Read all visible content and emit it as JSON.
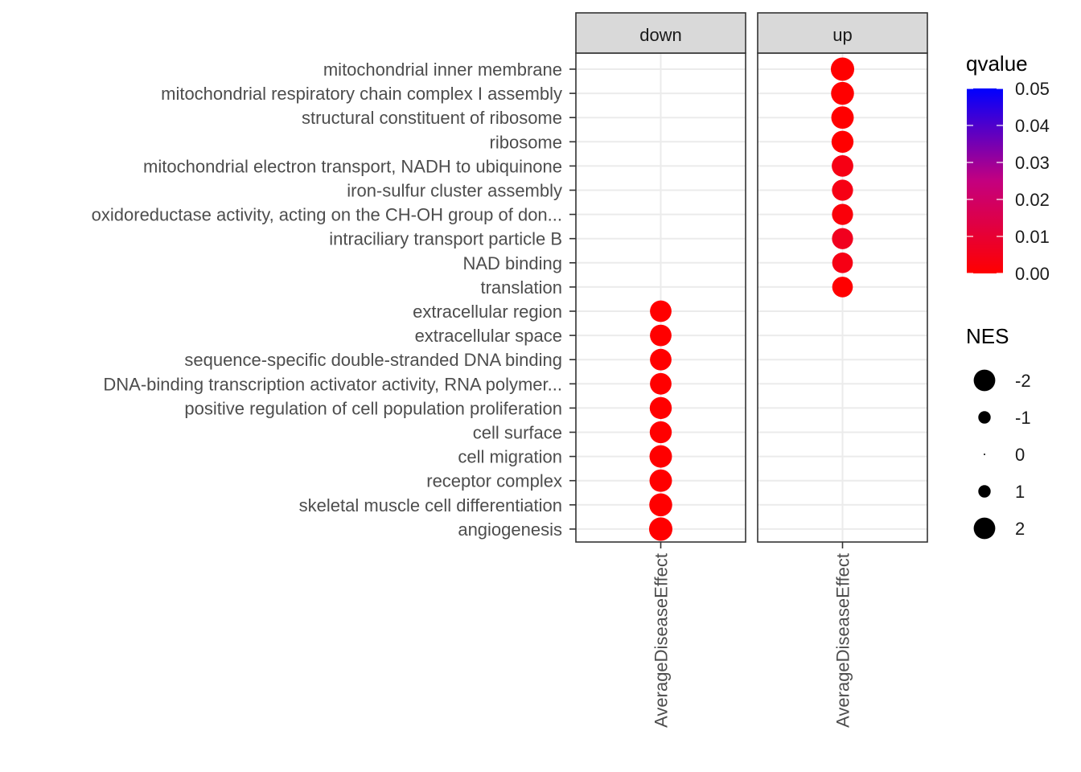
{
  "chart_data": {
    "type": "scatter",
    "subtype": "faceted dot plot",
    "facets": [
      "down",
      "up"
    ],
    "x_tick_label": "AverageDiseaseEffect",
    "categories": [
      "mitochondrial inner membrane",
      "mitochondrial respiratory chain complex I assembly",
      "structural constituent of ribosome",
      "ribosome",
      "mitochondrial electron transport, NADH to ubiquinone",
      "iron-sulfur cluster assembly",
      "oxidoreductase activity, acting on the CH-OH group of don...",
      "intraciliary transport particle B",
      "NAD binding",
      "translation",
      "extracellular region",
      "extracellular space",
      "sequence-specific double-stranded DNA binding",
      "DNA-binding transcription activator activity, RNA polymer...",
      "positive regulation of cell population proliferation",
      "cell surface",
      "cell migration",
      "receptor complex",
      "skeletal muscle cell differentiation",
      "angiogenesis"
    ],
    "points": [
      {
        "facet": "up",
        "category": "mitochondrial inner membrane",
        "NES": 2.2,
        "qvalue": 0.0
      },
      {
        "facet": "up",
        "category": "mitochondrial respiratory chain complex I assembly",
        "NES": 2.15,
        "qvalue": 0.0
      },
      {
        "facet": "up",
        "category": "structural constituent of ribosome",
        "NES": 2.1,
        "qvalue": 0.0
      },
      {
        "facet": "up",
        "category": "ribosome",
        "NES": 2.05,
        "qvalue": 0.0
      },
      {
        "facet": "up",
        "category": "mitochondrial electron transport, NADH to ubiquinone",
        "NES": 2.0,
        "qvalue": 0.004
      },
      {
        "facet": "up",
        "category": "iron-sulfur cluster assembly",
        "NES": 1.95,
        "qvalue": 0.004
      },
      {
        "facet": "up",
        "category": "oxidoreductase activity, acting on the CH-OH group of don...",
        "NES": 1.95,
        "qvalue": 0.002
      },
      {
        "facet": "up",
        "category": "intraciliary transport particle B",
        "NES": 1.95,
        "qvalue": 0.006
      },
      {
        "facet": "up",
        "category": "NAD binding",
        "NES": 1.9,
        "qvalue": 0.004
      },
      {
        "facet": "up",
        "category": "translation",
        "NES": 1.9,
        "qvalue": 0.0
      },
      {
        "facet": "down",
        "category": "extracellular region",
        "NES": -2.0,
        "qvalue": 0.0
      },
      {
        "facet": "down",
        "category": "extracellular space",
        "NES": -2.0,
        "qvalue": 0.0
      },
      {
        "facet": "down",
        "category": "sequence-specific double-stranded DNA binding",
        "NES": -2.0,
        "qvalue": 0.0
      },
      {
        "facet": "down",
        "category": "DNA-binding transcription activator activity, RNA polymer...",
        "NES": -2.0,
        "qvalue": 0.0
      },
      {
        "facet": "down",
        "category": "positive regulation of cell population proliferation",
        "NES": -2.05,
        "qvalue": 0.0
      },
      {
        "facet": "down",
        "category": "cell surface",
        "NES": -2.05,
        "qvalue": 0.0
      },
      {
        "facet": "down",
        "category": "cell migration",
        "NES": -2.1,
        "qvalue": 0.0
      },
      {
        "facet": "down",
        "category": "receptor complex",
        "NES": -2.1,
        "qvalue": 0.0
      },
      {
        "facet": "down",
        "category": "skeletal muscle cell differentiation",
        "NES": -2.15,
        "qvalue": 0.0
      },
      {
        "facet": "down",
        "category": "angiogenesis",
        "NES": -2.2,
        "qvalue": 0.0
      }
    ],
    "color_legend": {
      "title": "qvalue",
      "min": 0.0,
      "max": 0.05,
      "low_color": "#ff0000",
      "high_color": "#0000ff",
      "ticks": [
        "0.05",
        "0.04",
        "0.03",
        "0.02",
        "0.01",
        "0.00"
      ]
    },
    "size_legend": {
      "title": "NES",
      "entries": [
        {
          "label": "-2",
          "value": -2
        },
        {
          "label": "-1",
          "value": -1
        },
        {
          "label": "0",
          "value": 0
        },
        {
          "label": "1",
          "value": 1
        },
        {
          "label": "2",
          "value": 2
        }
      ]
    }
  }
}
